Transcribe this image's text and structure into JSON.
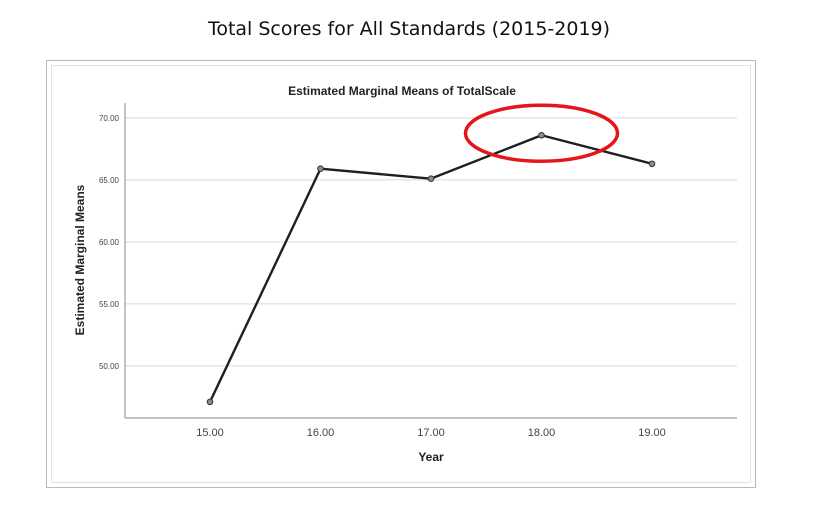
{
  "page": {
    "title": "Total Scores for All Standards (2015-2019)"
  },
  "chart_data": {
    "type": "line",
    "title": "Estimated Marginal Means of TotalScale",
    "xlabel": "Year",
    "ylabel": "Estimated Marginal Means",
    "categories": [
      "15.00",
      "16.00",
      "17.00",
      "18.00",
      "19.00"
    ],
    "values": [
      47.1,
      65.9,
      65.1,
      68.6,
      66.3
    ],
    "ylim": [
      45.8,
      71.2
    ],
    "y_ticks": [
      "50.00",
      "55.00",
      "60.00",
      "65.00",
      "70.00"
    ],
    "grid": "horizontal",
    "line_color": "#1f1f1f",
    "highlight": {
      "shape": "ellipse",
      "color": "#e4161b",
      "target_category": "18.00"
    }
  }
}
